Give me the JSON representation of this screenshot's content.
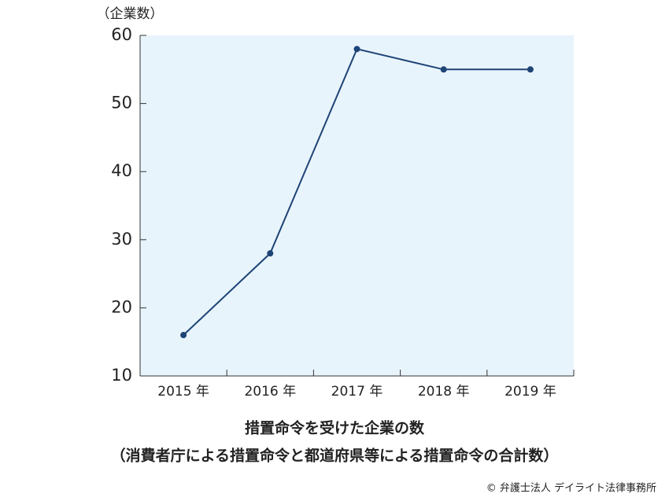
{
  "chart_data": {
    "type": "line",
    "title": "措置命令を受けた企業の数",
    "subtitle": "（消費者庁による措置命令と都道府県等による措置命令の合計数）",
    "y_label": "（企業数）",
    "source": "© 弁護士法人 デイライト法律事務所",
    "categories": [
      "2015 年",
      "2016 年",
      "2017 年",
      "2018 年",
      "2019 年"
    ],
    "values": [
      16,
      28,
      58,
      55,
      55
    ],
    "color": "#1e4476",
    "background": "#e8f4fc",
    "ylim": [
      10,
      60
    ],
    "yticks": [
      10,
      20,
      30,
      40,
      50,
      60
    ]
  }
}
